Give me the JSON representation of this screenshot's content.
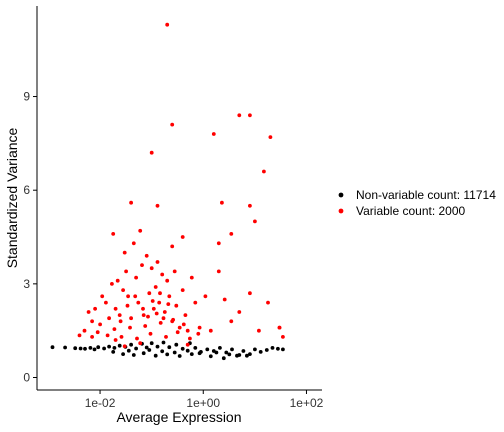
{
  "chart_data": {
    "type": "scatter",
    "xlabel": "Average Expression",
    "ylabel": "Standardized Variance",
    "x_scale": "log10",
    "xlim": [
      0.0006,
      200
    ],
    "ylim": [
      -0.4,
      11.9
    ],
    "x_ticks": [
      {
        "value": 0.01,
        "label": "1e-02"
      },
      {
        "value": 1,
        "label": "1e+00"
      },
      {
        "value": 100,
        "label": "1e+02"
      }
    ],
    "y_ticks": [
      {
        "value": 0,
        "label": "0"
      },
      {
        "value": 3,
        "label": "3"
      },
      {
        "value": 6,
        "label": "6"
      },
      {
        "value": 9,
        "label": "9"
      }
    ],
    "grid": false,
    "legend_position": "right",
    "series": [
      {
        "name": "Non-variable count: 11714",
        "color": "#000000",
        "summary": "Dense band of points from about 0.001 to 40 average expression with standardized variance mostly between 0.6 and 1.2",
        "points": [
          [
            0.0012,
            0.97
          ],
          [
            0.0021,
            0.96
          ],
          [
            0.0033,
            0.94
          ],
          [
            0.0042,
            0.93
          ],
          [
            0.0051,
            0.92
          ],
          [
            0.0065,
            0.95
          ],
          [
            0.0078,
            0.9
          ],
          [
            0.0092,
            0.97
          ],
          [
            0.012,
            0.93
          ],
          [
            0.015,
            0.99
          ],
          [
            0.019,
            0.95
          ],
          [
            0.024,
            1.02
          ],
          [
            0.031,
            0.98
          ],
          [
            0.04,
            1.05
          ],
          [
            0.05,
            0.93
          ],
          [
            0.065,
            1.08
          ],
          [
            0.08,
            0.96
          ],
          [
            0.1,
            1.1
          ],
          [
            0.13,
            0.99
          ],
          [
            0.17,
            1.12
          ],
          [
            0.22,
            0.97
          ],
          [
            0.3,
            1.05
          ],
          [
            0.4,
            0.92
          ],
          [
            0.55,
            1.1
          ],
          [
            0.7,
            0.95
          ],
          [
            0.9,
            0.82
          ],
          [
            1.2,
            0.9
          ],
          [
            1.6,
            0.85
          ],
          [
            2.1,
            0.95
          ],
          [
            2.8,
            0.8
          ],
          [
            3.6,
            0.9
          ],
          [
            4.5,
            0.7
          ],
          [
            6,
            0.85
          ],
          [
            8,
            0.75
          ],
          [
            10,
            0.9
          ],
          [
            13,
            0.82
          ],
          [
            17,
            0.88
          ],
          [
            22,
            0.95
          ],
          [
            28,
            0.92
          ],
          [
            35,
            0.9
          ],
          [
            0.028,
            0.75
          ],
          [
            0.045,
            0.72
          ],
          [
            0.07,
            0.78
          ],
          [
            0.12,
            0.7
          ],
          [
            0.2,
            0.74
          ],
          [
            0.35,
            0.69
          ],
          [
            0.6,
            0.75
          ],
          [
            1.4,
            0.68
          ],
          [
            2.5,
            0.62
          ],
          [
            5,
            0.72
          ],
          [
            0.018,
            0.82
          ],
          [
            0.036,
            0.86
          ],
          [
            0.09,
            0.88
          ],
          [
            0.16,
            0.84
          ],
          [
            0.28,
            0.8
          ],
          [
            0.5,
            0.86
          ],
          [
            0.85,
            0.78
          ],
          [
            1.8,
            0.8
          ],
          [
            3.2,
            0.74
          ],
          [
            7,
            0.7
          ]
        ]
      },
      {
        "name": "Variable count: 2000",
        "color": "#ff0000",
        "summary": "Points above the non-variable band, concentrated between 0.01 and 1 average expression with standardized variance from about 1.2 to 4, plus scattered outliers up to about 11.3",
        "points": [
          [
            0.004,
            1.35
          ],
          [
            0.005,
            1.5
          ],
          [
            0.006,
            2.1
          ],
          [
            0.007,
            1.8
          ],
          [
            0.008,
            2.2
          ],
          [
            0.01,
            1.7
          ],
          [
            0.011,
            2.6
          ],
          [
            0.013,
            2.4
          ],
          [
            0.015,
            1.9
          ],
          [
            0.017,
            3.0
          ],
          [
            0.02,
            2.2
          ],
          [
            0.022,
            3.1
          ],
          [
            0.025,
            1.8
          ],
          [
            0.028,
            2.8
          ],
          [
            0.03,
            4.0
          ],
          [
            0.032,
            3.4
          ],
          [
            0.035,
            2.6
          ],
          [
            0.04,
            1.9
          ],
          [
            0.045,
            4.3
          ],
          [
            0.05,
            3.2
          ],
          [
            0.055,
            2.4
          ],
          [
            0.06,
            4.7
          ],
          [
            0.065,
            3.6
          ],
          [
            0.07,
            2.0
          ],
          [
            0.08,
            3.9
          ],
          [
            0.09,
            2.7
          ],
          [
            0.1,
            3.5
          ],
          [
            0.11,
            2.2
          ],
          [
            0.12,
            2.9
          ],
          [
            0.13,
            3.7
          ],
          [
            0.14,
            2.4
          ],
          [
            0.16,
            3.3
          ],
          [
            0.18,
            2.1
          ],
          [
            0.2,
            3.1
          ],
          [
            0.22,
            2.6
          ],
          [
            0.25,
            1.8
          ],
          [
            0.28,
            3.4
          ],
          [
            0.3,
            2.3
          ],
          [
            0.35,
            1.6
          ],
          [
            0.4,
            2.8
          ],
          [
            0.45,
            2.0
          ],
          [
            0.5,
            1.5
          ],
          [
            0.6,
            3.2
          ],
          [
            0.7,
            2.4
          ],
          [
            0.85,
            1.6
          ],
          [
            1.1,
            2.6
          ],
          [
            1.4,
            1.5
          ],
          [
            2.0,
            3.4
          ],
          [
            2.6,
            2.5
          ],
          [
            3.5,
            1.8
          ],
          [
            5,
            2.1
          ],
          [
            8,
            2.7
          ],
          [
            12,
            1.5
          ],
          [
            18,
            2.4
          ],
          [
            30,
            1.6
          ],
          [
            0.009,
            1.45
          ],
          [
            0.014,
            1.35
          ],
          [
            0.019,
            1.55
          ],
          [
            0.026,
            1.3
          ],
          [
            0.038,
            1.6
          ],
          [
            0.052,
            1.25
          ],
          [
            0.075,
            1.65
          ],
          [
            0.095,
            1.4
          ],
          [
            0.15,
            1.75
          ],
          [
            0.19,
            1.3
          ],
          [
            0.26,
            1.85
          ],
          [
            0.32,
            1.45
          ],
          [
            0.42,
            1.7
          ],
          [
            0.55,
            1.25
          ],
          [
            0.8,
            1.4
          ],
          [
            0.024,
            2.0
          ],
          [
            0.034,
            2.3
          ],
          [
            0.048,
            2.6
          ],
          [
            0.068,
            2.2
          ],
          [
            0.085,
            1.95
          ],
          [
            0.105,
            2.45
          ],
          [
            0.125,
            2.05
          ],
          [
            0.145,
            2.7
          ],
          [
            0.17,
            1.9
          ],
          [
            0.21,
            2.35
          ],
          [
            0.04,
            5.6
          ],
          [
            0.13,
            5.5
          ],
          [
            0.25,
            4.2
          ],
          [
            0.4,
            4.5
          ],
          [
            2.0,
            4.3
          ],
          [
            2.3,
            5.6
          ],
          [
            3.5,
            4.6
          ],
          [
            8.0,
            5.5
          ],
          [
            10,
            5.0
          ],
          [
            1.6,
            7.8
          ],
          [
            0.1,
            7.2
          ],
          [
            0.25,
            8.1
          ],
          [
            5,
            8.4
          ],
          [
            8,
            8.4
          ],
          [
            20,
            7.7
          ],
          [
            15,
            6.6
          ],
          [
            0.2,
            11.3
          ],
          [
            0.03,
            1.0
          ],
          [
            0.06,
            1.1
          ],
          [
            0.5,
            1.05
          ],
          [
            30,
            1.6
          ],
          [
            35,
            1.3
          ],
          [
            0.018,
            4.6
          ],
          [
            0.02,
            1.2
          ],
          [
            0.007,
            1.3
          ]
        ]
      }
    ]
  }
}
